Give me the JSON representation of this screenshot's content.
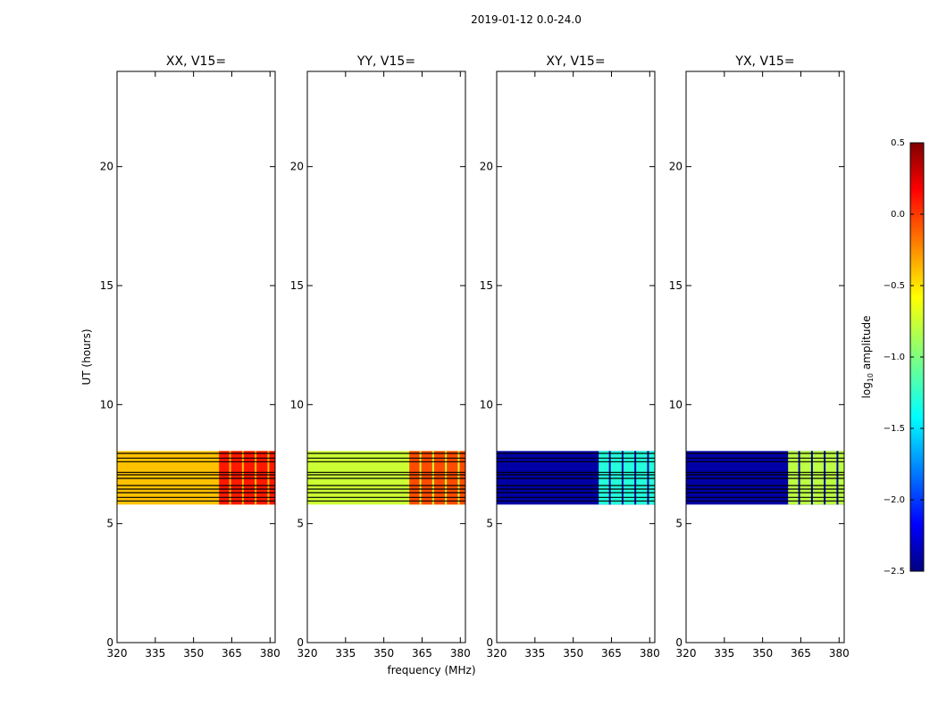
{
  "figure": {
    "suptitle": "2019-01-12 0.0-24.0",
    "xlabel": "frequency (MHz)",
    "ylabel": "UT (hours)",
    "colorbar_label": "log10 amplitude",
    "colorbar_label_base": "log",
    "colorbar_label_sub": "10",
    "colorbar_label_rest": " amplitude"
  },
  "chart_data": {
    "type": "heatmap",
    "title": "2019-01-12 0.0-24.0",
    "xlabel": "frequency (MHz)",
    "ylabel": "UT (hours)",
    "xlim": [
      320,
      382
    ],
    "ylim": [
      0,
      24
    ],
    "xticks": [
      320,
      335,
      350,
      365,
      380
    ],
    "yticks": [
      0,
      5,
      10,
      15,
      20
    ],
    "colorbar": {
      "label": "log10 amplitude",
      "colormap": "jet",
      "range": [
        -2.5,
        0.5
      ],
      "ticks": [
        0.5,
        0.0,
        -0.5,
        -1.0,
        -1.5,
        -2.0,
        -2.5
      ],
      "tick_labels": [
        "0.5",
        "0.0",
        "−0.5",
        "−1.0",
        "−1.5",
        "−2.0",
        "−2.5"
      ]
    },
    "data_time_range": [
      5.8,
      8.05
    ],
    "gap_times": [
      5.95,
      6.1,
      6.3,
      6.45,
      6.6,
      6.9,
      7.05,
      7.15,
      7.6,
      7.75,
      7.95
    ],
    "panels": [
      {
        "title": "XX, V15=",
        "base_log_amplitude": -0.4,
        "band_freq_range": [
          360,
          382
        ],
        "band_log_amplitude": 0.1,
        "band_flag_freqs": [
          364,
          369,
          374,
          379
        ]
      },
      {
        "title": "YY, V15=",
        "base_log_amplitude": -0.75,
        "band_freq_range": [
          360,
          382
        ],
        "band_log_amplitude": -0.05,
        "band_flag_freqs": [
          364,
          369,
          374,
          379
        ]
      },
      {
        "title": "XY, V15=",
        "base_log_amplitude": -2.4,
        "band_freq_range": [
          360,
          382
        ],
        "band_log_amplitude": -1.3,
        "band_flag_freqs": [
          364,
          369,
          374,
          379
        ]
      },
      {
        "title": "YX, V15=",
        "base_log_amplitude": -2.4,
        "band_freq_range": [
          360,
          382
        ],
        "band_log_amplitude": -0.8,
        "band_flag_freqs": [
          364,
          369,
          374,
          379
        ]
      }
    ]
  }
}
